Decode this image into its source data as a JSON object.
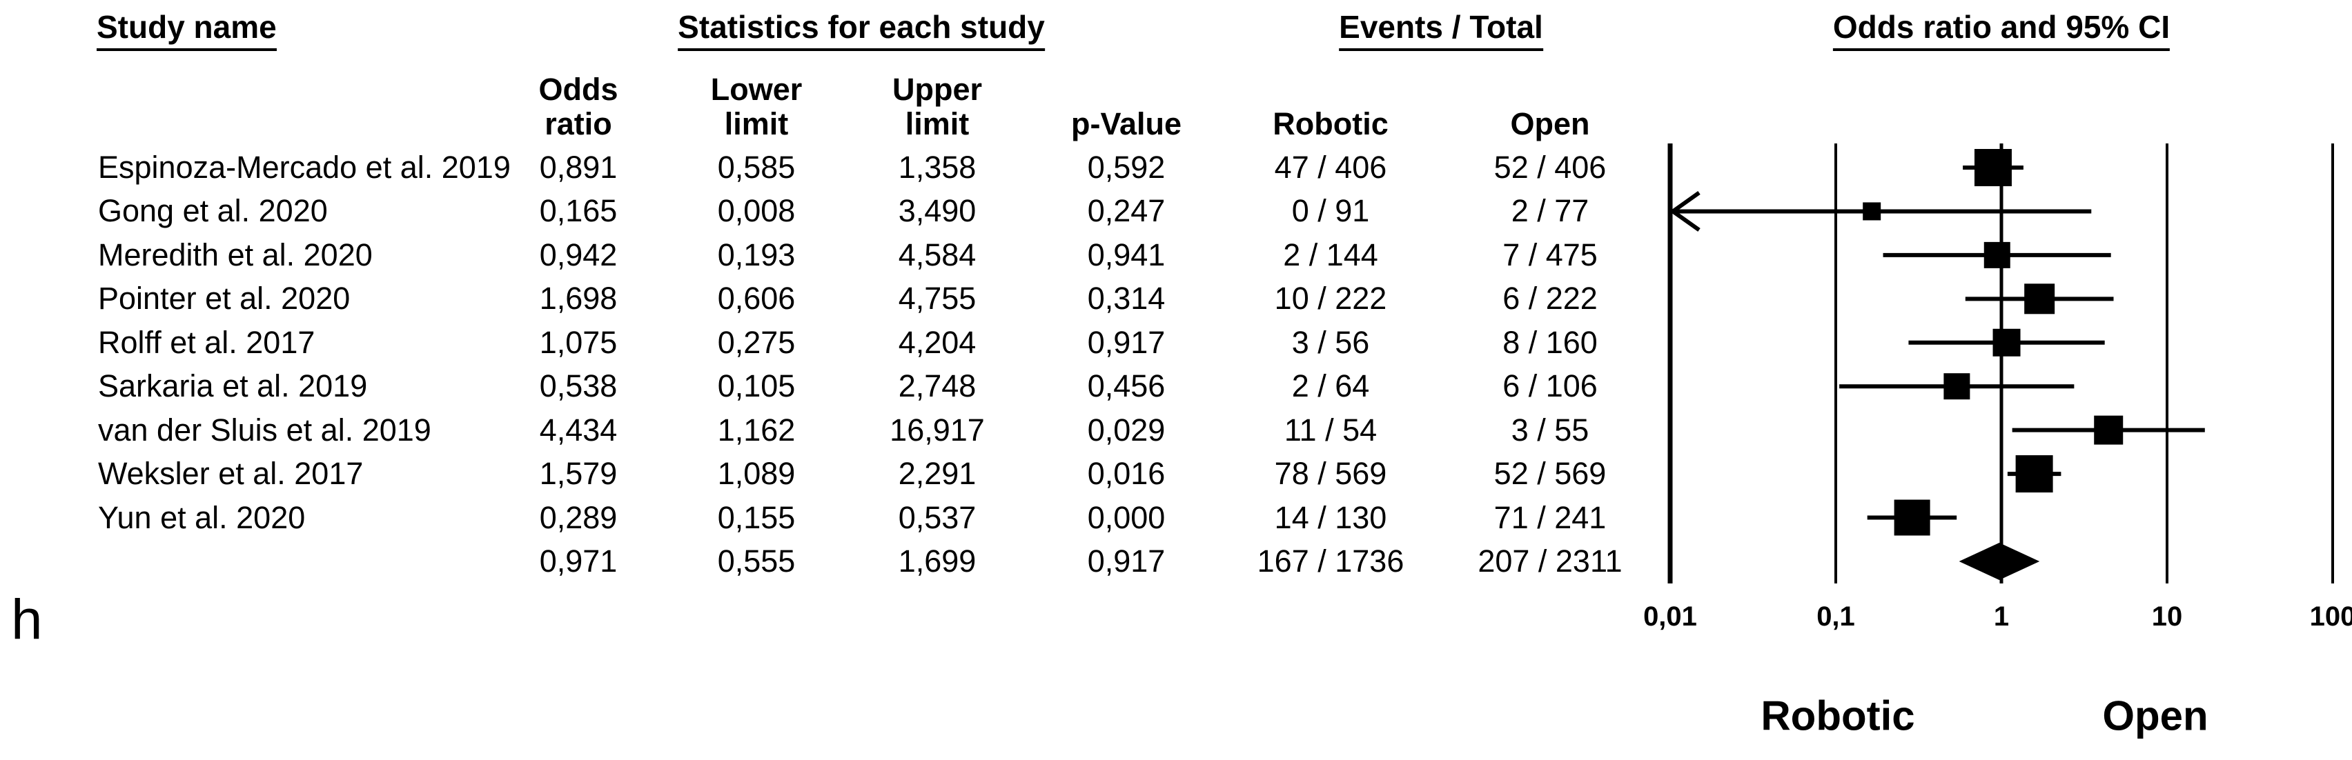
{
  "figure": {
    "panel_label": "h"
  },
  "headers": {
    "study_name": "Study name",
    "statistics": "Statistics for each study",
    "events_total": "Events / Total",
    "or_ci": "Odds ratio and 95% CI"
  },
  "subheaders": {
    "odds_ratio": "Odds\nratio",
    "lower_limit": "Lower\nlimit",
    "upper_limit": "Upper\nlimit",
    "p_value": "p-Value",
    "robotic": "Robotic",
    "open": "Open"
  },
  "chart_data": {
    "type": "forest",
    "x_scale": "log10",
    "xlim": [
      0.01,
      100
    ],
    "grid": true,
    "axis_ticks": [
      {
        "label": "0,01",
        "value": 0.01
      },
      {
        "label": "0,1",
        "value": 0.1
      },
      {
        "label": "1",
        "value": 1
      },
      {
        "label": "10",
        "value": 10
      },
      {
        "label": "100",
        "value": 100
      }
    ],
    "favours_left_label": "Robotic",
    "favours_right_label": "Open",
    "columns": [
      "Study name",
      "Odds ratio",
      "Lower limit",
      "Upper limit",
      "p-Value",
      "Robotic",
      "Open"
    ],
    "studies": [
      {
        "name": "Espinoza-Mercado et al. 2019",
        "odds_ratio": "0,891",
        "lower_limit": "0,585",
        "upper_limit": "1,358",
        "p_value": "0,592",
        "robotic": "47 / 406",
        "open": "52 / 406",
        "marker_half": 27,
        "summary": false
      },
      {
        "name": "Gong et al. 2020",
        "odds_ratio": "0,165",
        "lower_limit": "0,008",
        "upper_limit": "3,490",
        "p_value": "0,247",
        "robotic": "0 / 91",
        "open": "2 / 77",
        "marker_half": 13,
        "summary": false
      },
      {
        "name": "Meredith et al. 2020",
        "odds_ratio": "0,942",
        "lower_limit": "0,193",
        "upper_limit": "4,584",
        "p_value": "0,941",
        "robotic": "2 / 144",
        "open": "7 / 475",
        "marker_half": 19,
        "summary": false
      },
      {
        "name": "Pointer et al. 2020",
        "odds_ratio": "1,698",
        "lower_limit": "0,606",
        "upper_limit": "4,755",
        "p_value": "0,314",
        "robotic": "10 / 222",
        "open": "6 / 222",
        "marker_half": 22,
        "summary": false
      },
      {
        "name": "Rolff et al. 2017",
        "odds_ratio": "1,075",
        "lower_limit": "0,275",
        "upper_limit": "4,204",
        "p_value": "0,917",
        "robotic": "3 / 56",
        "open": "8 / 160",
        "marker_half": 20,
        "summary": false
      },
      {
        "name": "Sarkaria et al. 2019",
        "odds_ratio": "0,538",
        "lower_limit": "0,105",
        "upper_limit": "2,748",
        "p_value": "0,456",
        "robotic": "2 / 64",
        "open": "6 / 106",
        "marker_half": 19,
        "summary": false
      },
      {
        "name": "van der Sluis et al. 2019",
        "odds_ratio": "4,434",
        "lower_limit": "1,162",
        "upper_limit": "16,917",
        "p_value": "0,029",
        "robotic": "11 / 54",
        "open": "3 / 55",
        "marker_half": 21,
        "summary": false
      },
      {
        "name": "Weksler et al. 2017",
        "odds_ratio": "1,579",
        "lower_limit": "1,089",
        "upper_limit": "2,291",
        "p_value": "0,016",
        "robotic": "78 / 569",
        "open": "52 / 569",
        "marker_half": 27,
        "summary": false
      },
      {
        "name": "Yun et al. 2020",
        "odds_ratio": "0,289",
        "lower_limit": "0,155",
        "upper_limit": "0,537",
        "p_value": "0,000",
        "robotic": "14 / 130",
        "open": "71 / 241",
        "marker_half": 26,
        "summary": false
      },
      {
        "name": "",
        "odds_ratio": "0,971",
        "lower_limit": "0,555",
        "upper_limit": "1,699",
        "p_value": "0,917",
        "robotic": "167 / 1736",
        "open": "207 / 2311",
        "marker_half": 27,
        "summary": true
      }
    ]
  }
}
